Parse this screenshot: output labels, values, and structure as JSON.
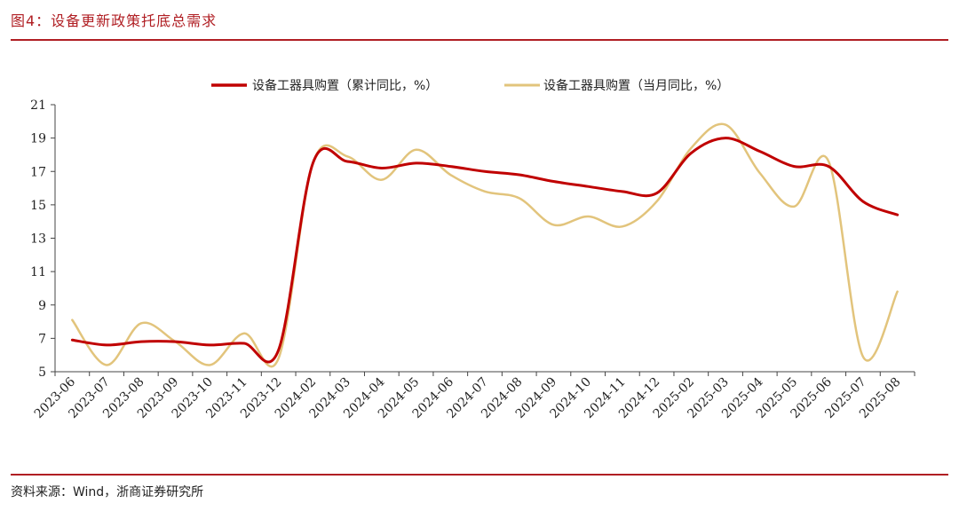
{
  "header": {
    "title": "图4：设备更新政策托底总需求"
  },
  "footer": {
    "source": "资料来源：Wind，浙商证券研究所"
  },
  "chart_data": {
    "type": "line",
    "categories": [
      "2023-06",
      "2023-07",
      "2023-08",
      "2023-09",
      "2023-10",
      "2023-11",
      "2023-12",
      "2024-02",
      "2024-03",
      "2024-04",
      "2024-05",
      "2024-06",
      "2024-07",
      "2024-08",
      "2024-09",
      "2024-10",
      "2024-11",
      "2024-12",
      "2025-02",
      "2025-03",
      "2025-04",
      "2025-05",
      "2025-06",
      "2025-07",
      "2025-08"
    ],
    "series": [
      {
        "name": "设备工器具购置（累计同比，%）",
        "color": "#c00000",
        "width": 3,
        "values": [
          6.9,
          6.6,
          6.8,
          6.8,
          6.6,
          6.7,
          6.3,
          17.5,
          17.6,
          17.2,
          17.5,
          17.3,
          17.0,
          16.8,
          16.4,
          16.1,
          15.8,
          15.7,
          18.1,
          19.0,
          18.2,
          17.3,
          17.3,
          15.2,
          14.4
        ]
      },
      {
        "name": "设备工器具购置（当月同比，%）",
        "color": "#e2c47c",
        "width": 2.5,
        "values": [
          8.1,
          5.4,
          7.9,
          6.8,
          5.4,
          7.3,
          5.8,
          17.5,
          17.9,
          16.5,
          18.3,
          16.8,
          15.8,
          15.4,
          13.8,
          14.3,
          13.7,
          15.2,
          18.4,
          19.8,
          16.9,
          14.9,
          17.6,
          5.9,
          9.8
        ]
      }
    ],
    "ylim": [
      5,
      21
    ],
    "yticks": [
      5,
      7,
      9,
      11,
      13,
      15,
      17,
      19,
      21
    ],
    "legend_position": "top-center",
    "grid": false
  }
}
